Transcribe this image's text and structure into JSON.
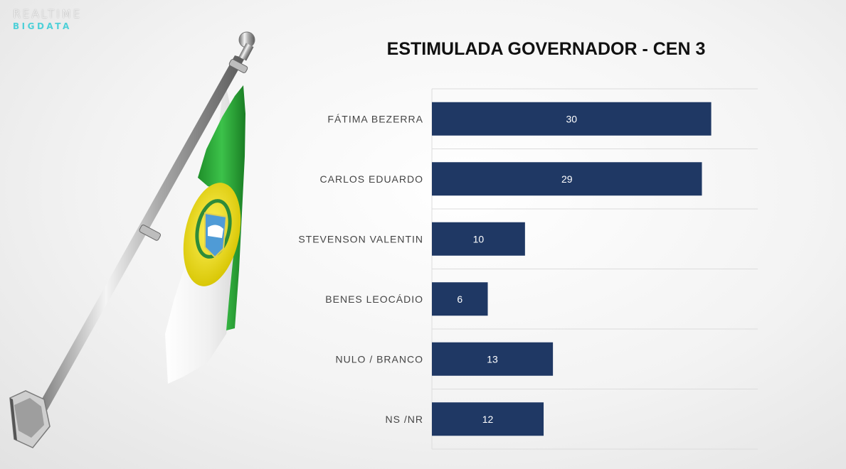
{
  "logo": {
    "line1": "REALTIME",
    "line2": "BIGDATA"
  },
  "colors": {
    "bar": "#1f3864",
    "label": "#444444",
    "bar_text": "#ffffff",
    "grid": "#dcdcdc"
  },
  "chart_data": {
    "type": "bar",
    "orientation": "horizontal",
    "title": "ESTIMULADA GOVERNADOR - CEN 3",
    "categories": [
      "FÁTIMA BEZERRA",
      "CARLOS EDUARDO",
      "STEVENSON VALENTIN",
      "BENES LEOCÁDIO",
      "NULO / BRANCO",
      "NS /NR"
    ],
    "values": [
      30,
      29,
      10,
      6,
      13,
      12
    ],
    "xlim": [
      0,
      35
    ],
    "grid": true,
    "data_labels": true
  }
}
